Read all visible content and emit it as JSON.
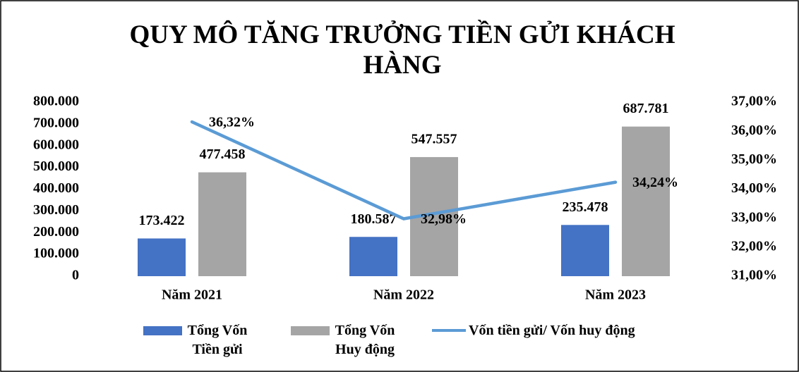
{
  "chart_data": {
    "type": "bar_line",
    "title": "QUY MÔ TĂNG TRƯỞNG TIỀN GỬI KHÁCH HÀNG",
    "categories": [
      "Năm 2021",
      "Năm 2022",
      "Năm 2023"
    ],
    "series": [
      {
        "name": "Tổng Vốn Tiền gửi",
        "type": "bar",
        "color": "#4472c4",
        "values": [
          173422,
          180587,
          235478
        ],
        "value_labels": [
          "173.422",
          "180.587",
          "235.478"
        ]
      },
      {
        "name": "Tổng Vốn Huy động",
        "type": "bar",
        "color": "#a5a5a5",
        "values": [
          477458,
          547557,
          687781
        ],
        "value_labels": [
          "477.458",
          "547.557",
          "687.781"
        ]
      },
      {
        "name": "Vốn tiền gửi/ Vốn huy động",
        "type": "line",
        "axis": "y2",
        "color": "#5b9bd5",
        "values": [
          36.32,
          32.98,
          34.24
        ],
        "value_labels": [
          "36,32%",
          "32,98%",
          "34,24%"
        ]
      }
    ],
    "ylim": [
      0,
      800000
    ],
    "yticks": [
      0,
      {
        "value": 100000,
        "label": "100.000"
      },
      {
        "value": 200000,
        "label": "200.000"
      },
      {
        "value": 300000,
        "label": "300.000"
      },
      {
        "value": 400000,
        "label": "400.000"
      },
      {
        "value": 500000,
        "label": "500.000"
      },
      {
        "value": 600000,
        "label": "600.000"
      },
      {
        "value": 700000,
        "label": "700.000"
      },
      {
        "value": 800000,
        "label": "800.000"
      }
    ],
    "y2lim": [
      31,
      37
    ],
    "y2ticks": [
      {
        "value": 31,
        "label": "31,00%"
      },
      {
        "value": 32,
        "label": "32,00%"
      },
      {
        "value": 33,
        "label": "33,00%"
      },
      {
        "value": 34,
        "label": "34,00%"
      },
      {
        "value": 35,
        "label": "35,00%"
      },
      {
        "value": 36,
        "label": "36,00%"
      },
      {
        "value": 37,
        "label": "37,00%"
      }
    ],
    "grid": false,
    "legend": "bottom"
  }
}
